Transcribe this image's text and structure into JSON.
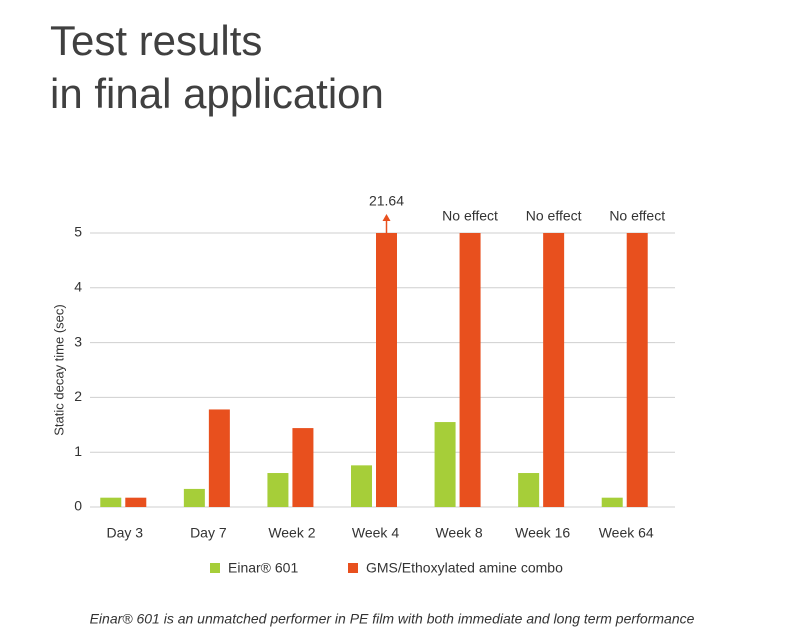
{
  "chart_data": {
    "type": "bar",
    "title": [
      "Test results",
      "in final application"
    ],
    "y_label": "Static decay time (sec)",
    "categories": [
      "Day 3",
      "Day 7",
      "Week 2",
      "Week 4",
      "Week 8",
      "Week 16",
      "Week 64"
    ],
    "series": [
      {
        "name": "Einar® 601",
        "color": "#a6ce39",
        "values": [
          0.17,
          0.33,
          0.62,
          0.76,
          1.55,
          0.62,
          0.17
        ]
      },
      {
        "name": "GMS/Ethoxylated amine combo",
        "color": "#e8501e",
        "values": [
          0.17,
          1.78,
          1.44,
          21.64,
          null,
          null,
          null
        ],
        "value_labels": [
          null,
          null,
          null,
          "21.64",
          "No effect",
          "No effect",
          "No effect"
        ]
      }
    ],
    "ylim": [
      0,
      5
    ],
    "yticks": [
      0,
      1,
      2,
      3,
      4,
      5
    ],
    "grid": true,
    "footnote": "Einar® 601 is an unmatched performer in PE film with both immediate and long term performance"
  }
}
